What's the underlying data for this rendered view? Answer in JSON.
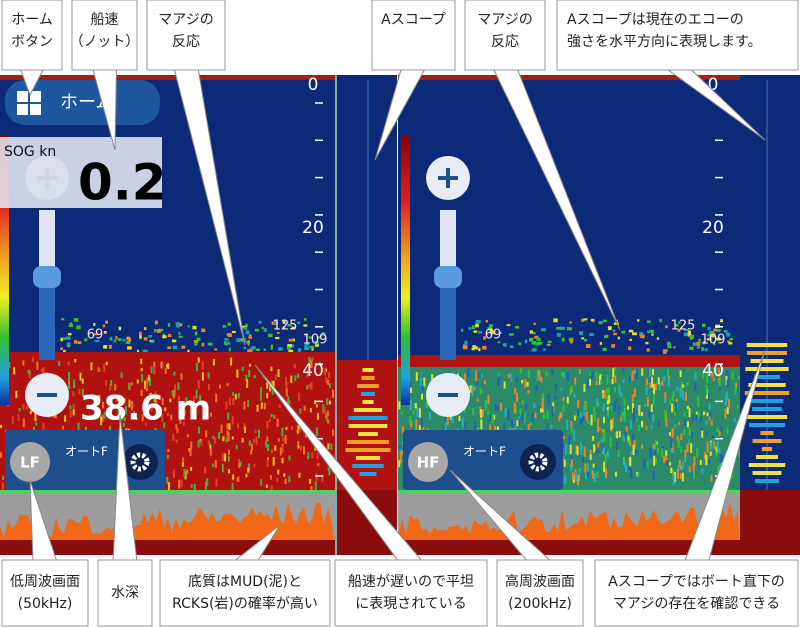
{
  "callouts": {
    "top": [
      [
        "ホーム",
        "ボタン"
      ],
      [
        "船速",
        "（ノット）"
      ],
      [
        "マアジの",
        "反応"
      ],
      [
        "Aスコープ"
      ],
      [
        "マアジの",
        "反応"
      ],
      [
        "Aスコープは現在のエコーの",
        "強さを水平方向に表現します。"
      ]
    ],
    "bottom": [
      [
        "低周波画面",
        "(50kHz)"
      ],
      [
        "水深"
      ],
      [
        "底質はMUD(泥)と",
        "RCKS(岩)の確率が高い"
      ],
      [
        "船速が遅いので平坦",
        "に表現されている"
      ],
      [
        "高周波画面",
        "(200kHz)"
      ],
      [
        "Aスコープではボート直下の",
        "マアジの存在を確認できる"
      ]
    ]
  },
  "screen": {
    "home_button": "ホーム",
    "sog_label": "SOG kn",
    "sog_value": 0.2,
    "depth": "38.6 m",
    "left": {
      "frequency_button": "LF",
      "mode": "オートF",
      "depth_scale": [
        0,
        20,
        40
      ],
      "echo_labels": [
        69,
        125,
        109
      ]
    },
    "right": {
      "frequency_button": "HF",
      "mode": "オートF",
      "depth_scale": [
        0,
        20,
        40
      ],
      "echo_labels": [
        69,
        125,
        109
      ]
    }
  }
}
